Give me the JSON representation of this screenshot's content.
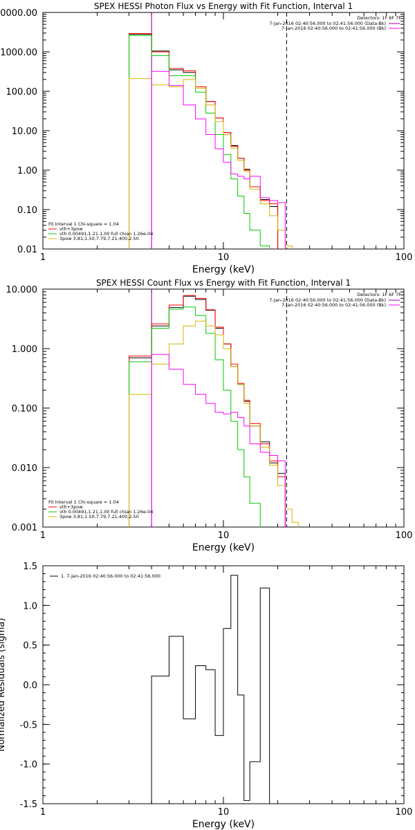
{
  "chart_data": [
    {
      "type": "line",
      "title": "SPEX HESSI Photon Flux vs Energy with Fit Function, Interval 1",
      "xlabel": "Energy (keV)",
      "ylabel": "",
      "xscale": "log",
      "yscale": "log",
      "xlim": [
        1,
        100
      ],
      "ylim": [
        0.01,
        10000
      ],
      "x_ticks": [
        "1",
        "10",
        "100"
      ],
      "y_ticks": [
        "0.01",
        "0.10",
        "1.00",
        "10.00",
        "100.00",
        "1000.00",
        "10000.00"
      ],
      "energy_edges": [
        3,
        4,
        5,
        6,
        7,
        8,
        9,
        10,
        11,
        12,
        13,
        14,
        16,
        18,
        20,
        22,
        24,
        26,
        28
      ],
      "vlines": [
        {
          "x": 4.0,
          "style": "dotted",
          "color": "#000000"
        },
        {
          "x": 4.0,
          "style": "solid",
          "color": "#a000a0"
        },
        {
          "x": 22.4,
          "style": "dashed",
          "color": "#000000"
        }
      ],
      "series": [
        {
          "name": "",
          "color": "#000000",
          "values": [
            2800,
            1050,
            350,
            300,
            130,
            55,
            21,
            9,
            4.2,
            2.0,
            1.05,
            0.38,
            0.18,
            0.12,
            null,
            null,
            null,
            null
          ]
        },
        {
          "name": "vth+3pow",
          "color": "#ff0000",
          "values": [
            2900,
            1000,
            380,
            330,
            130,
            55,
            21,
            9,
            4.0,
            2.0,
            1.0,
            0.38,
            0.17,
            0.14,
            null,
            null,
            null,
            null
          ]
        },
        {
          "name": "vth 0.00491,1.21,1.00 full chian 1.26e-04",
          "color": "#00c800",
          "values": [
            2600,
            800,
            250,
            250,
            95,
            28,
            8,
            2.5,
            0.6,
            0.22,
            0.08,
            0.03,
            0.012,
            null,
            null,
            null,
            null,
            null
          ]
        },
        {
          "name": "3pow 3.81,1.50,7.79,7.21,400,2.50",
          "color": "#d7b400",
          "values": [
            210,
            145,
            130,
            200,
            120,
            45,
            17,
            8,
            3.6,
            1.75,
            0.95,
            0.33,
            0.14,
            0.07,
            0.03,
            0.012,
            null,
            null
          ]
        },
        {
          "name": "",
          "color": "#ff00ff",
          "values": [
            null,
            320,
            140,
            45,
            20,
            8,
            3.5,
            1.6,
            0.8,
            0.7,
            0.6,
            0.7,
            0.2,
            0.17,
            0.15,
            null,
            null,
            null
          ]
        }
      ],
      "legend": {
        "position": "bottom-left",
        "header": "Fit Interval 1     Chi-square = 1.04",
        "entries": [
          {
            "label": "vth+3pow",
            "color": "#ff0000"
          },
          {
            "label": "vth 0.00491,1.21,1.00 full chian 1.26e-04",
            "color": "#00c800"
          },
          {
            "label": "3pow 3.81,1.50,7.79,7.21,400,2.50",
            "color": "#d7b400"
          }
        ]
      },
      "info": {
        "position": "top-right",
        "detectors": "Detectors: 1F 6F 7F",
        "lines": [
          {
            "text": "7-Jan-2016 02:40:56.000 to 02:41:56.000 (Data-Bk)",
            "color": "#a000a0"
          },
          {
            "text": "7-Jan-2016 02:40:56.000 to 02:41:56.000 (Bk)",
            "color": "#ff00ff"
          }
        ]
      }
    },
    {
      "type": "line",
      "title": "SPEX HESSI Count Flux vs Energy with Fit Function, Interval 1",
      "xlabel": "Energy (keV)",
      "ylabel": "",
      "xscale": "log",
      "yscale": "log",
      "xlim": [
        1,
        100
      ],
      "ylim": [
        0.001,
        10
      ],
      "x_ticks": [
        "1",
        "10",
        "100"
      ],
      "y_ticks": [
        "0.001",
        "0.010",
        "0.100",
        "1.000",
        "10.000"
      ],
      "energy_edges": [
        3,
        4,
        5,
        6,
        7,
        8,
        9,
        10,
        11,
        12,
        13,
        14,
        16,
        18,
        20,
        22,
        24,
        26,
        28
      ],
      "vlines": [
        {
          "x": 4.0,
          "style": "dotted",
          "color": "#000000"
        },
        {
          "x": 4.0,
          "style": "solid",
          "color": "#a000a0"
        },
        {
          "x": 22.4,
          "style": "dashed",
          "color": "#000000"
        }
      ],
      "series": [
        {
          "name": "",
          "color": "#000000",
          "values": [
            0.7,
            2.4,
            4.9,
            7.6,
            6.7,
            4.4,
            2.2,
            1.2,
            0.5,
            0.25,
            0.13,
            0.05,
            0.027,
            0.012,
            0.008,
            null,
            null,
            null
          ]
        },
        {
          "name": "vth+3pow",
          "color": "#ff0000",
          "values": [
            0.75,
            2.6,
            5.4,
            7.8,
            7.0,
            4.5,
            2.3,
            1.2,
            0.55,
            0.26,
            0.135,
            0.055,
            0.025,
            0.013,
            0.007,
            null,
            null,
            null
          ]
        },
        {
          "name": "vth 0.00491,1.21,1.00 full chian 1.26e-04",
          "color": "#00c800",
          "values": [
            0.6,
            2.2,
            4.6,
            5.0,
            3.6,
            1.8,
            0.65,
            0.2,
            0.06,
            0.02,
            0.007,
            0.0025,
            0.0008,
            null,
            null,
            null,
            null,
            null
          ]
        },
        {
          "name": "3pow 3.81,1.50,7.79,7.21,400,2.50",
          "color": "#d7b400",
          "values": [
            0.17,
            0.55,
            1.2,
            2.4,
            2.9,
            2.4,
            1.7,
            1.0,
            0.5,
            0.25,
            0.12,
            0.05,
            0.022,
            0.011,
            0.005,
            0.002,
            0.0012,
            0.0008
          ]
        },
        {
          "name": "",
          "color": "#ff00ff",
          "values": [
            null,
            0.8,
            0.45,
            0.25,
            0.17,
            0.12,
            0.085,
            0.08,
            0.085,
            0.07,
            0.05,
            0.025,
            0.018,
            0.016,
            0.013,
            null,
            null,
            null
          ]
        }
      ],
      "legend": {
        "position": "bottom-left",
        "header": "Fit Interval 1     Chi-square = 1.04",
        "entries": [
          {
            "label": "vth+3pow",
            "color": "#ff0000"
          },
          {
            "label": "vth 0.00491,1.21,1.00 full chian 1.26e-04",
            "color": "#00c800"
          },
          {
            "label": "3pow 3.81,1.50,7.79,7.21,400,2.50",
            "color": "#d7b400"
          }
        ]
      },
      "info": {
        "position": "top-right",
        "detectors": "Detectors: 1F 6F 7F",
        "lines": [
          {
            "text": "7-Jan-2016 02:40:56.000 to 02:41:56.000 (Data-Bk)",
            "color": "#a000a0"
          },
          {
            "text": "7-Jan-2016 02:40:56.000 to 02:41:56.000 (Bk)",
            "color": "#ff00ff"
          }
        ]
      }
    },
    {
      "type": "line",
      "title": "",
      "xlabel": "Energy (keV)",
      "ylabel": "Normalized Residuals (sigma)",
      "xscale": "log",
      "yscale": "linear",
      "xlim": [
        1,
        100
      ],
      "ylim": [
        -1.5,
        1.5
      ],
      "x_ticks": [
        "1",
        "10",
        "100"
      ],
      "y_ticks": [
        "-1.5",
        "-1.0",
        "-0.5",
        "0.0",
        "0.5",
        "1.0",
        "1.5"
      ],
      "energy_edges": [
        4,
        5,
        6,
        7,
        8,
        9,
        10,
        11,
        12,
        13,
        14,
        16,
        18,
        20,
        22
      ],
      "series": [
        {
          "name": "1.  7-Jan-2016 02:40:56.000 to 02:41:56.000",
          "color": "#000000",
          "values": [
            0.11,
            0.61,
            -0.43,
            0.24,
            0.19,
            -0.64,
            0.71,
            1.38,
            -0.13,
            -1.46,
            -0.97,
            1.22,
            null,
            null
          ]
        }
      ],
      "legend": {
        "position": "top-left",
        "entries": [
          {
            "label": "1.  7-Jan-2016 02:40:56.000 to 02:41:56.000",
            "color": "#000000"
          }
        ]
      }
    }
  ]
}
